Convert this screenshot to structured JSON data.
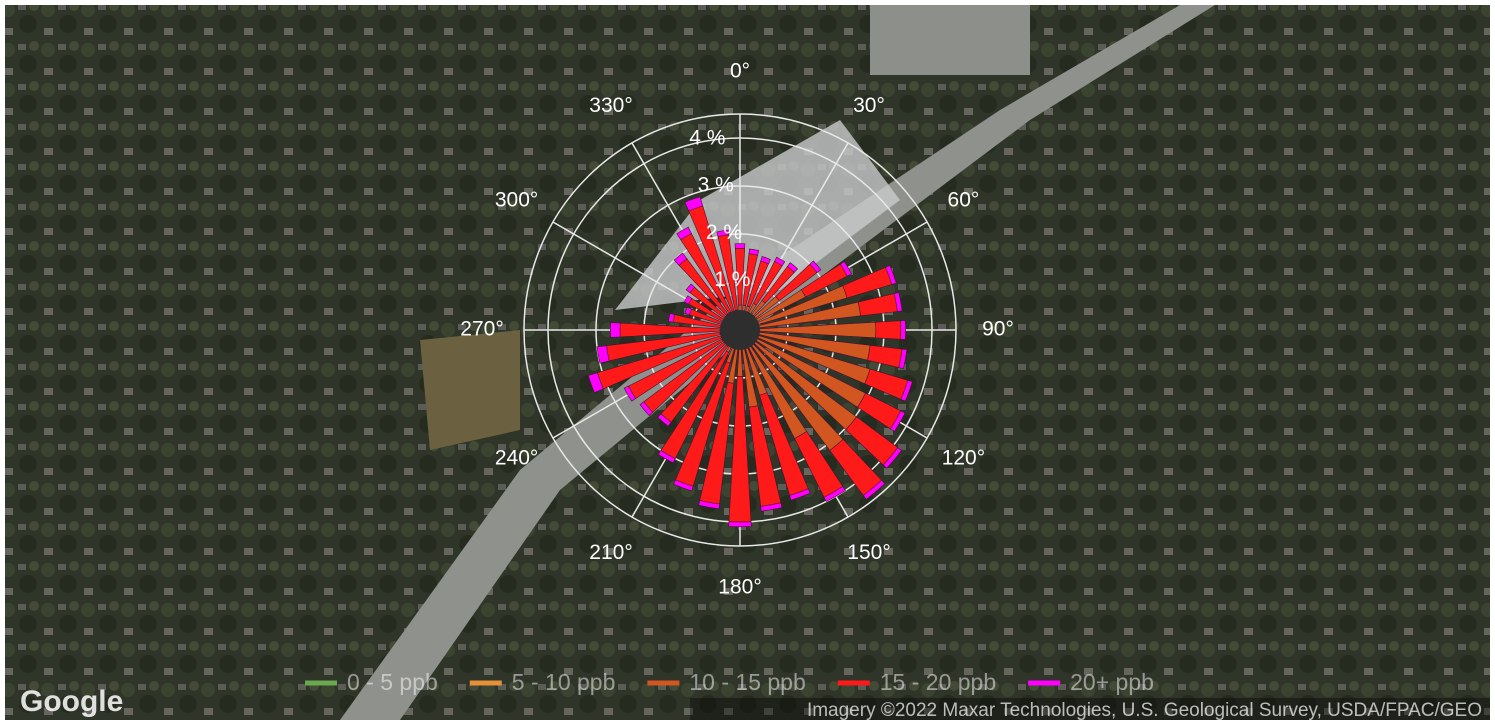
{
  "chart_data": {
    "type": "polar_stacked_bar",
    "directions": [
      0,
      10,
      20,
      30,
      40,
      50,
      60,
      70,
      80,
      90,
      100,
      110,
      120,
      130,
      140,
      150,
      160,
      170,
      180,
      190,
      200,
      210,
      220,
      230,
      240,
      250,
      260,
      270,
      280,
      290,
      300,
      310,
      320,
      330,
      340,
      350
    ],
    "series": [
      {
        "name": "0 - 5 ppb",
        "color": "#6aa84f",
        "values": [
          0.02,
          0.02,
          0.02,
          0.02,
          0.02,
          0.02,
          0.03,
          0.03,
          0.03,
          0.03,
          0.03,
          0.03,
          0.03,
          0.03,
          0.03,
          0.03,
          0.02,
          0.02,
          0.02,
          0.02,
          0.02,
          0.02,
          0.02,
          0.02,
          0.02,
          0.02,
          0.02,
          0.02,
          0.02,
          0.02,
          0.02,
          0.02,
          0.02,
          0.02,
          0.02,
          0.02
        ]
      },
      {
        "name": "5 - 10 ppb",
        "color": "#e69138",
        "values": [
          0.1,
          0.1,
          0.1,
          0.1,
          0.15,
          0.2,
          0.3,
          0.3,
          0.3,
          0.3,
          0.3,
          0.3,
          0.3,
          0.3,
          0.3,
          0.3,
          0.2,
          0.2,
          0.15,
          0.1,
          0.1,
          0.1,
          0.1,
          0.1,
          0.1,
          0.1,
          0.1,
          0.1,
          0.1,
          0.1,
          0.1,
          0.1,
          0.1,
          0.1,
          0.1,
          0.1
        ]
      },
      {
        "name": "10 - 15 ppb",
        "color": "#d2561f",
        "values": [
          0.4,
          0.4,
          0.4,
          0.5,
          0.6,
          0.8,
          1.2,
          2.0,
          2.2,
          2.5,
          2.4,
          2.5,
          2.6,
          2.7,
          2.8,
          2.2,
          1.2,
          1.4,
          0.8,
          1.0,
          0.6,
          0.4,
          0.3,
          0.3,
          0.3,
          0.3,
          0.3,
          0.3,
          0.2,
          0.2,
          0.2,
          0.2,
          0.3,
          0.3,
          0.3,
          0.3
        ]
      },
      {
        "name": "15 - 20 ppb",
        "color": "#ff1a1a",
        "values": [
          1.18,
          1.08,
          0.98,
          0.98,
          0.88,
          0.98,
          0.97,
          0.97,
          0.77,
          0.52,
          0.67,
          0.82,
          0.82,
          1.07,
          1.17,
          1.37,
          2.18,
          2.08,
          3.03,
          2.53,
          2.68,
          2.48,
          1.98,
          2.08,
          2.18,
          2.68,
          2.38,
          2.08,
          1.08,
          0.78,
          0.88,
          0.98,
          1.43,
          1.83,
          2.28,
          1.58
        ]
      },
      {
        "name": "20+ ppb",
        "color": "#ff00ff",
        "values": [
          0.1,
          0.1,
          0.1,
          0.1,
          0.1,
          0.1,
          0.1,
          0.1,
          0.1,
          0.1,
          0.1,
          0.1,
          0.1,
          0.1,
          0.1,
          0.1,
          0.1,
          0.1,
          0.1,
          0.1,
          0.1,
          0.1,
          0.1,
          0.1,
          0.1,
          0.2,
          0.2,
          0.2,
          0.1,
          0.1,
          0.1,
          0.1,
          0.15,
          0.15,
          0.2,
          0.1
        ]
      }
    ],
    "rlim": [
      0,
      4.5
    ],
    "rticks": [
      {
        "value": 1,
        "label": "1 %"
      },
      {
        "value": 2,
        "label": "2 %"
      },
      {
        "value": 3,
        "label": "3 %"
      },
      {
        "value": 4,
        "label": "4 %"
      }
    ],
    "angle_ticks": [
      {
        "value": 0,
        "label": "0°"
      },
      {
        "value": 30,
        "label": "30°"
      },
      {
        "value": 60,
        "label": "60°"
      },
      {
        "value": 90,
        "label": "90°"
      },
      {
        "value": 120,
        "label": "120°"
      },
      {
        "value": 150,
        "label": "150°"
      },
      {
        "value": 180,
        "label": "180°"
      },
      {
        "value": 210,
        "label": "210°"
      },
      {
        "value": 240,
        "label": "240°"
      },
      {
        "value": 270,
        "label": "270°"
      },
      {
        "value": 300,
        "label": "300°"
      },
      {
        "value": 330,
        "label": "330°"
      }
    ],
    "grid": true,
    "legend": "bottom"
  },
  "map_logo": "Google",
  "map_attribution": "Imagery ©2022 Maxar Technologies, U.S. Geological Survey, USDA/FPAC/GEO"
}
